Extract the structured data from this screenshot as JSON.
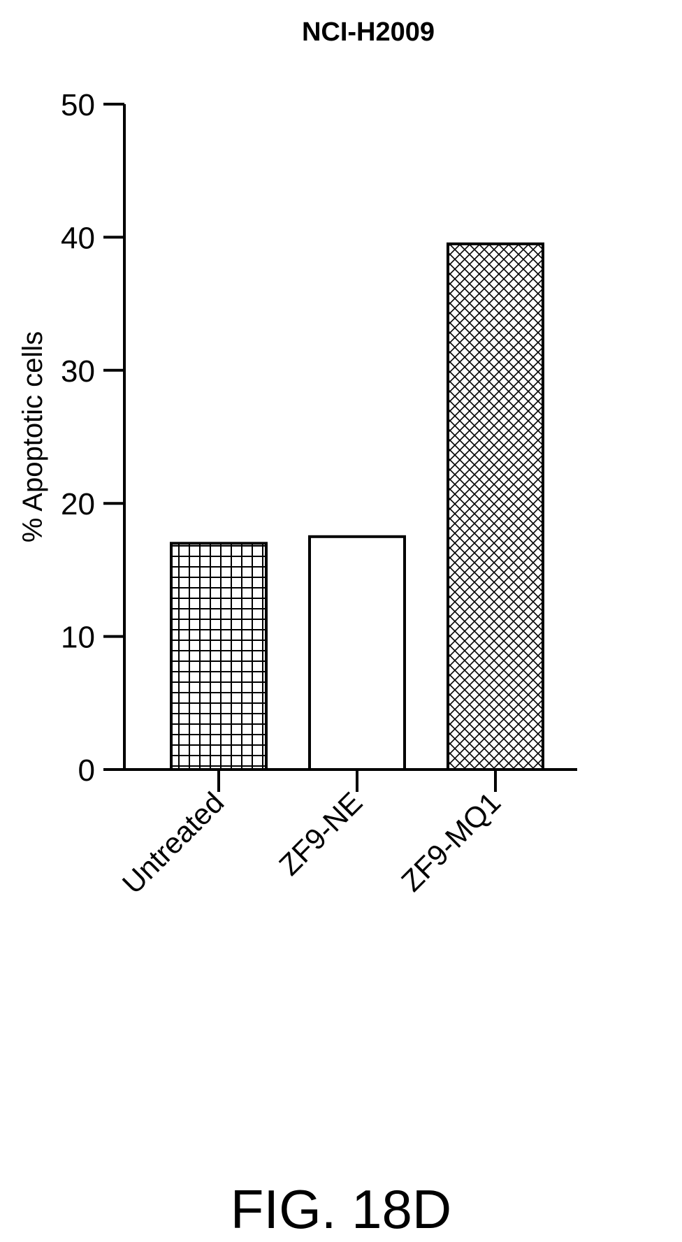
{
  "chart_data": {
    "type": "bar",
    "title": "NCI-H2009",
    "ylabel": "% Apoptotic cells",
    "xlabel": "",
    "ylim": [
      0,
      50
    ],
    "yticks": [
      0,
      10,
      20,
      30,
      40,
      50
    ],
    "categories": [
      "Untreated",
      "ZF9-NE",
      "ZF9-MQ1"
    ],
    "values": [
      17,
      17.5,
      39.5
    ],
    "fills": [
      "grid",
      "none",
      "crosshatch"
    ],
    "grid": false,
    "legend": "none"
  },
  "caption": "FIG. 18D"
}
